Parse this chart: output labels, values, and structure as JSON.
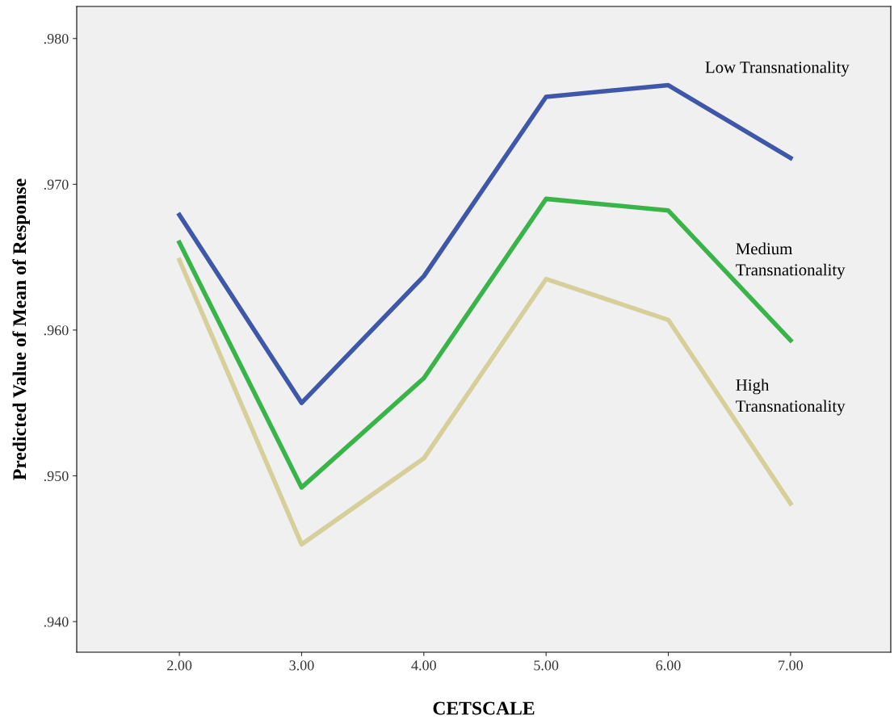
{
  "chart_data": {
    "type": "line",
    "xlabel": "CETSCALE",
    "ylabel": "Predicted Value of Mean of Response",
    "x": [
      2,
      3,
      4,
      5,
      6,
      7
    ],
    "series": [
      {
        "name": "Low Transnationality",
        "color": "#3f57a8",
        "values": [
          0.9679,
          0.955,
          0.9637,
          0.976,
          0.9768,
          0.9718
        ]
      },
      {
        "name": "Medium\nTransnationality",
        "color": "#38b449",
        "values": [
          0.966,
          0.9492,
          0.9567,
          0.969,
          0.9682,
          0.9593
        ]
      },
      {
        "name": "High\nTransnationality",
        "color": "#d6cf9a",
        "values": [
          0.9648,
          0.9453,
          0.9512,
          0.9635,
          0.9607,
          0.9481
        ]
      }
    ],
    "xlim": [
      1.16,
      7.82
    ],
    "ylim": [
      0.9379,
      0.9822
    ],
    "xticks": [
      {
        "value": 2,
        "label": "2.00"
      },
      {
        "value": 3,
        "label": "3.00"
      },
      {
        "value": 4,
        "label": "4.00"
      },
      {
        "value": 5,
        "label": "5.00"
      },
      {
        "value": 6,
        "label": "6.00"
      },
      {
        "value": 7,
        "label": "7.00"
      }
    ],
    "yticks": [
      {
        "value": 0.94,
        "label": ".940"
      },
      {
        "value": 0.95,
        "label": ".950"
      },
      {
        "value": 0.96,
        "label": ".960"
      },
      {
        "value": 0.97,
        "label": ".970"
      },
      {
        "value": 0.98,
        "label": ".980"
      }
    ],
    "grid": false,
    "legend": false,
    "marker": "none",
    "line_style": "solid"
  }
}
